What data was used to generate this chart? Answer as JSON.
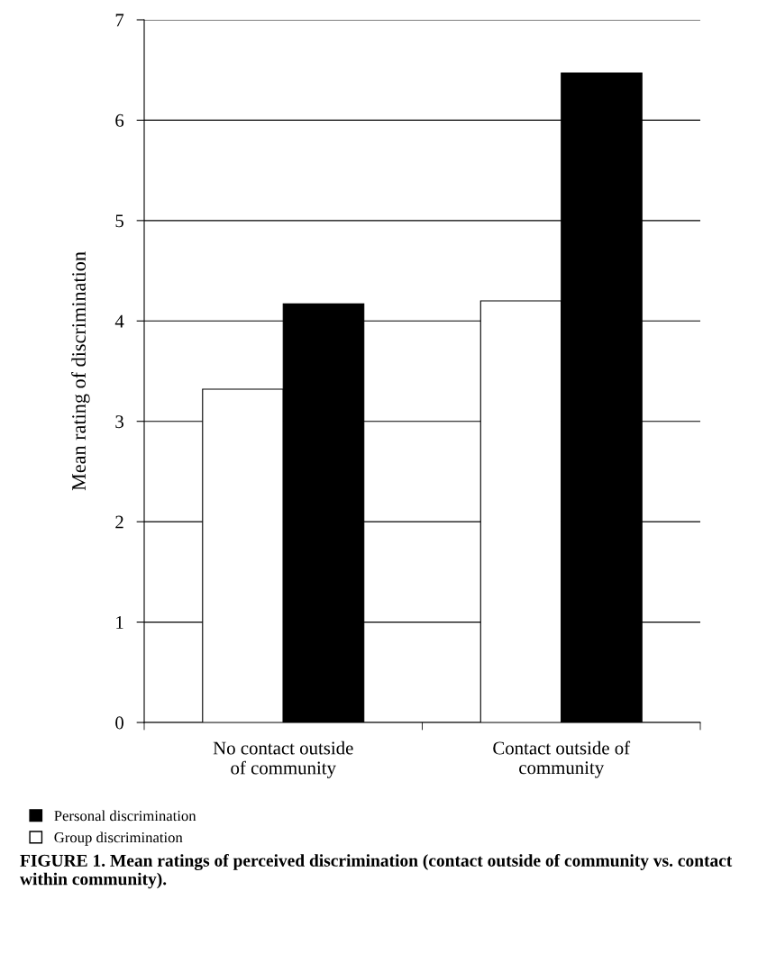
{
  "chart_data": {
    "type": "bar",
    "title": "FIGURE 1. Mean ratings of perceived discrimination (contact outside of community vs. contact within community).",
    "ylabel": "Mean rating of discrimination",
    "categories": [
      "No contact outside\nof community",
      "Contact outside of\ncommunity"
    ],
    "series": [
      {
        "name": "Group discrimination",
        "color": "#ffffff",
        "values": [
          3.32,
          4.2
        ]
      },
      {
        "name": "Personal discrimination",
        "color": "#000000",
        "values": [
          4.17,
          6.47
        ]
      }
    ],
    "ylim": [
      0,
      7
    ],
    "yticks": [
      0,
      1,
      2,
      3,
      4,
      5,
      6,
      7
    ],
    "grid": "y",
    "legend": "bottom left"
  }
}
